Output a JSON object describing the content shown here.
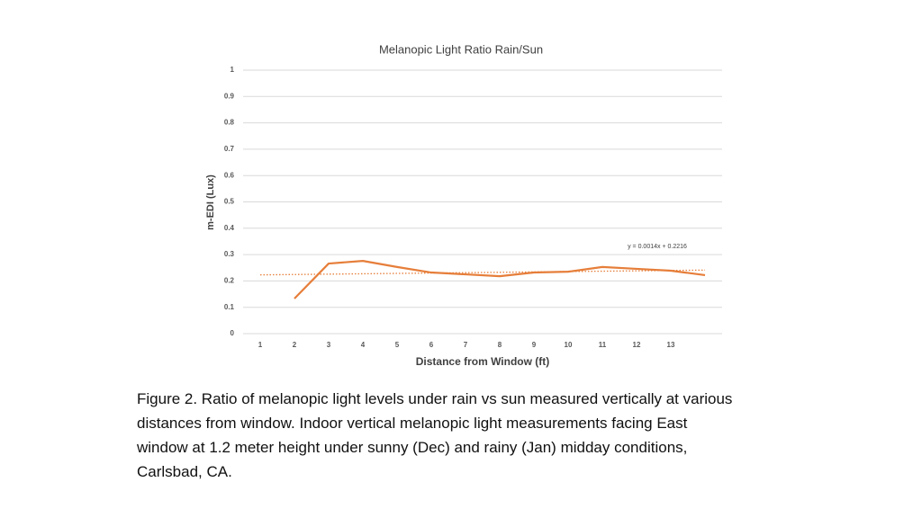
{
  "chart_data": {
    "type": "line",
    "title": "Melanopic Light Ratio Rain/Sun",
    "x_label": "Distance from Window (ft)",
    "y_label": "m-EDI (Lux)",
    "categories": [
      "1",
      "2",
      "3",
      "4",
      "5",
      "6",
      "7",
      "8",
      "9",
      "10",
      "11",
      "12",
      "13",
      null
    ],
    "series": [
      {
        "color": "#e67e3a",
        "values": [
          null,
          0.133,
          0.266,
          0.276,
          0.253,
          0.232,
          0.225,
          0.218,
          0.232,
          0.235,
          0.253,
          0.246,
          0.239,
          0.222
        ]
      }
    ],
    "ylim": [
      0,
      1
    ],
    "yticks": [
      0,
      0.1,
      0.2,
      0.3,
      0.4,
      0.5,
      0.6,
      0.7,
      0.8,
      0.9,
      1
    ],
    "grid": true,
    "trendline": {
      "slope": 0.0014,
      "intercept": 0.2216,
      "label": "y = 0.0014x + 0.2216",
      "color": "#e67e3a"
    }
  },
  "caption": [
    "Figure 2. Ratio of melanopic light levels under rain vs sun measured vertically at various",
    "distances from window. Indoor vertical melanopic light measurements facing East",
    "window at 1.2 meter height under sunny (Dec) and rainy (Jan) midday conditions,",
    "Carlsbad, CA."
  ]
}
